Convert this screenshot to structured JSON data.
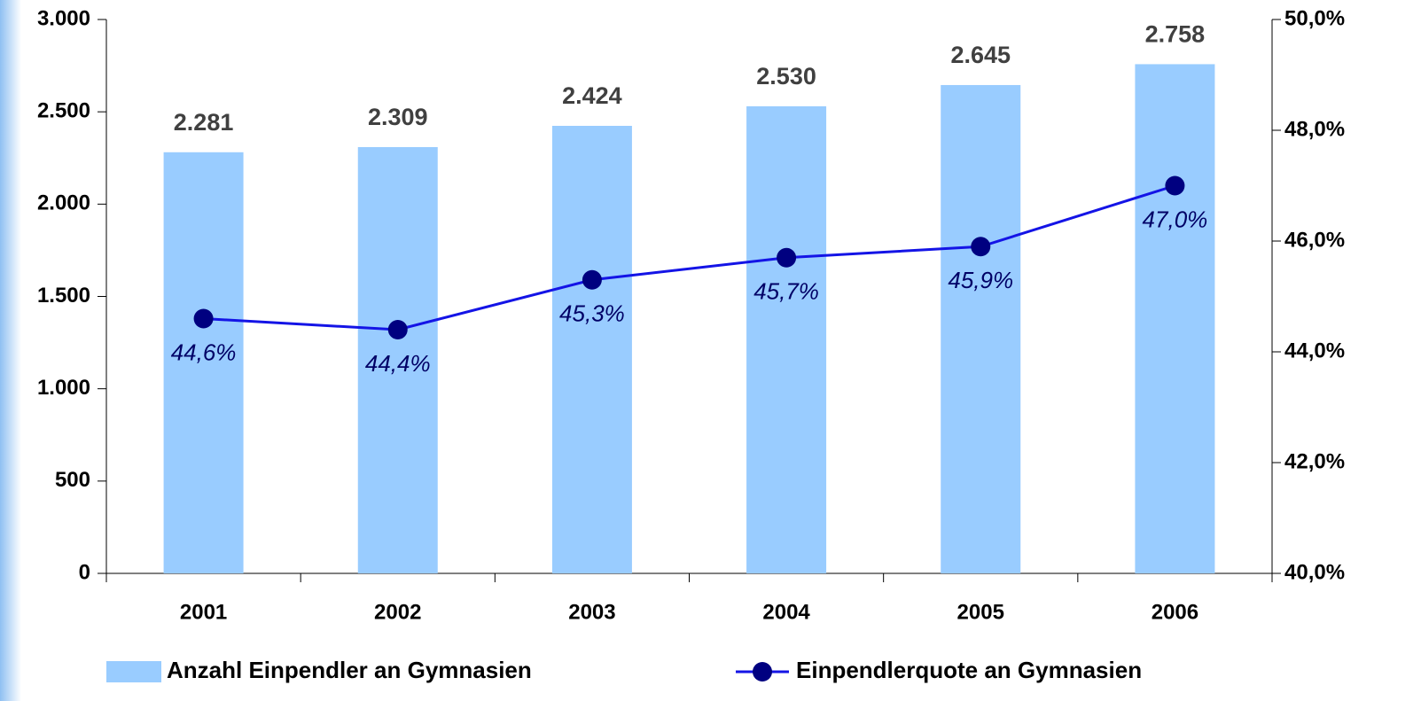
{
  "chart_data": {
    "type": "bar",
    "categories": [
      "2001",
      "2002",
      "2003",
      "2004",
      "2005",
      "2006"
    ],
    "series": [
      {
        "name": "Anzahl Einpendler an Gymnasien",
        "color": "#99ccff",
        "values": [
          2281,
          2309,
          2424,
          2530,
          2645,
          2758
        ],
        "value_labels": [
          "2.281",
          "2.309",
          "2.424",
          "2.530",
          "2.645",
          "2.758"
        ]
      },
      {
        "name": "Einpendlerquote an Gymnasien",
        "type": "line",
        "axis": "y2",
        "color": "#1414e6",
        "marker_color": "#000080",
        "values": [
          44.6,
          44.4,
          45.3,
          45.7,
          45.9,
          47.0
        ],
        "value_labels": [
          "44,6%",
          "44,4%",
          "45,3%",
          "45,7%",
          "45,9%",
          "47,0%"
        ]
      }
    ],
    "ylim": [
      0,
      3000
    ],
    "yticks": [
      0,
      500,
      {
        "value": 1000,
        "label": "1.000"
      },
      {
        "value": 1500,
        "label": "1.500"
      },
      {
        "value": 2000,
        "label": "2.000"
      },
      {
        "value": 2500,
        "label": "2.500"
      },
      {
        "value": 3000,
        "label": "3.000"
      }
    ],
    "y2lim": [
      40,
      50
    ],
    "y2ticks": [
      {
        "value": 40,
        "label": "40,0%"
      },
      {
        "value": 42,
        "label": "42,0%"
      },
      {
        "value": 44,
        "label": "44,0%"
      },
      {
        "value": 46,
        "label": "46,0%"
      },
      {
        "value": 48,
        "label": "48,0%"
      },
      {
        "value": 50,
        "label": "50,0%"
      }
    ],
    "legend": "bottom"
  }
}
